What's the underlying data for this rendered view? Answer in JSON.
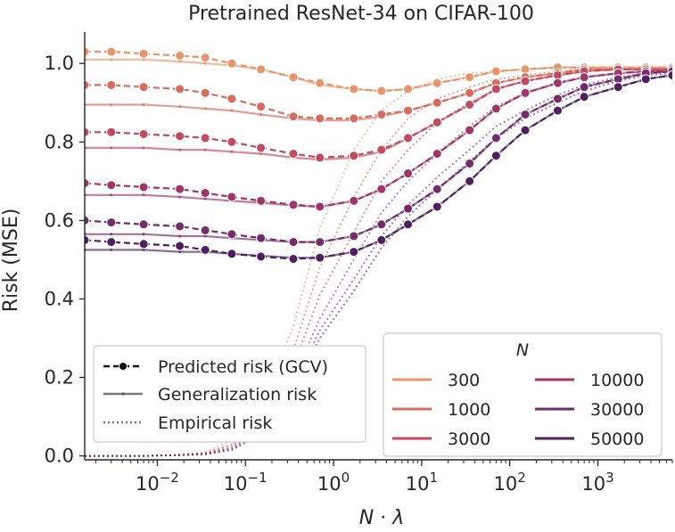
{
  "chart_data": {
    "type": "line",
    "title": "Pretrained ResNet-34 on CIFAR-100",
    "xlabel_prefix": "N",
    "xlabel_suffix": "λ",
    "ylabel": "Risk (MSE)",
    "xscale": "log",
    "xlim": [
      0.0015,
      7000
    ],
    "ylim": [
      -0.01,
      1.08
    ],
    "xticks": [
      {
        "value": 0.01,
        "exp": "−2"
      },
      {
        "value": 0.1,
        "exp": "−1"
      },
      {
        "value": 1,
        "exp": "0"
      },
      {
        "value": 10,
        "exp": "1"
      },
      {
        "value": 100,
        "exp": "2"
      },
      {
        "value": 1000,
        "exp": "3"
      }
    ],
    "yticks": [
      "0.0",
      "0.2",
      "0.4",
      "0.6",
      "0.8",
      "1.0"
    ],
    "ytick_values": [
      0,
      0.2,
      0.4,
      0.6,
      0.8,
      1.0
    ],
    "grid": false,
    "x": [
      0.0015,
      0.003,
      0.007,
      0.018,
      0.035,
      0.07,
      0.15,
      0.35,
      0.7,
      1.7,
      3.5,
      7,
      15,
      35,
      70,
      150,
      350,
      700,
      1700,
      3500,
      7000
    ],
    "series": [
      {
        "name": "300",
        "color": "#e8956b",
        "predicted": [
          1.03,
          1.03,
          1.025,
          1.02,
          1.015,
          1.0,
          0.985,
          0.965,
          0.95,
          0.935,
          0.93,
          0.935,
          0.95,
          0.965,
          0.98,
          0.985,
          0.99,
          0.99,
          0.99,
          0.99,
          0.99
        ],
        "generalization": [
          1.01,
          1.01,
          1.01,
          1.005,
          1.0,
          0.995,
          0.985,
          0.965,
          0.945,
          0.935,
          0.93,
          0.935,
          0.95,
          0.965,
          0.98,
          0.985,
          0.99,
          0.99,
          0.99,
          0.99,
          0.99
        ],
        "empirical": [
          0.0,
          0.0,
          0.0,
          0.003,
          0.01,
          0.04,
          0.13,
          0.33,
          0.58,
          0.78,
          0.88,
          0.93,
          0.96,
          0.975,
          0.98,
          0.985,
          0.99,
          0.99,
          0.99,
          0.99,
          0.99
        ]
      },
      {
        "name": "1000",
        "color": "#d96b5c",
        "predicted": [
          0.945,
          0.945,
          0.94,
          0.935,
          0.925,
          0.91,
          0.89,
          0.865,
          0.86,
          0.86,
          0.87,
          0.88,
          0.9,
          0.925,
          0.95,
          0.965,
          0.975,
          0.985,
          0.985,
          0.985,
          0.985
        ],
        "generalization": [
          0.895,
          0.895,
          0.895,
          0.89,
          0.885,
          0.88,
          0.87,
          0.86,
          0.855,
          0.855,
          0.865,
          0.88,
          0.9,
          0.925,
          0.95,
          0.965,
          0.975,
          0.985,
          0.985,
          0.985,
          0.985
        ],
        "empirical": [
          0.0,
          0.0,
          0.0,
          0.002,
          0.007,
          0.03,
          0.1,
          0.27,
          0.48,
          0.66,
          0.78,
          0.86,
          0.91,
          0.94,
          0.96,
          0.97,
          0.98,
          0.985,
          0.985,
          0.985,
          0.985
        ]
      },
      {
        "name": "3000",
        "color": "#c24a5e",
        "predicted": [
          0.825,
          0.825,
          0.82,
          0.815,
          0.81,
          0.8,
          0.785,
          0.77,
          0.76,
          0.765,
          0.78,
          0.81,
          0.85,
          0.895,
          0.935,
          0.955,
          0.97,
          0.98,
          0.985,
          0.985,
          0.985
        ],
        "generalization": [
          0.785,
          0.785,
          0.785,
          0.78,
          0.78,
          0.775,
          0.77,
          0.76,
          0.755,
          0.76,
          0.775,
          0.81,
          0.85,
          0.895,
          0.935,
          0.955,
          0.97,
          0.98,
          0.985,
          0.985,
          0.985
        ],
        "empirical": [
          0.0,
          0.0,
          0.0,
          0.002,
          0.006,
          0.025,
          0.085,
          0.23,
          0.41,
          0.57,
          0.7,
          0.78,
          0.85,
          0.9,
          0.935,
          0.955,
          0.97,
          0.98,
          0.985,
          0.985,
          0.985
        ]
      },
      {
        "name": "10000",
        "color": "#a0356a",
        "predicted": [
          0.695,
          0.69,
          0.685,
          0.68,
          0.67,
          0.66,
          0.65,
          0.64,
          0.635,
          0.65,
          0.68,
          0.72,
          0.77,
          0.83,
          0.885,
          0.925,
          0.95,
          0.965,
          0.975,
          0.98,
          0.98
        ],
        "generalization": [
          0.665,
          0.665,
          0.665,
          0.66,
          0.655,
          0.65,
          0.645,
          0.638,
          0.635,
          0.65,
          0.68,
          0.72,
          0.77,
          0.83,
          0.885,
          0.925,
          0.95,
          0.965,
          0.975,
          0.98,
          0.98
        ],
        "empirical": [
          0.0,
          0.0,
          0.0,
          0.002,
          0.005,
          0.02,
          0.07,
          0.2,
          0.35,
          0.5,
          0.62,
          0.7,
          0.77,
          0.84,
          0.89,
          0.925,
          0.95,
          0.965,
          0.975,
          0.98,
          0.98
        ]
      },
      {
        "name": "30000",
        "color": "#732c6b",
        "predicted": [
          0.6,
          0.595,
          0.59,
          0.585,
          0.575,
          0.565,
          0.555,
          0.545,
          0.545,
          0.56,
          0.59,
          0.63,
          0.68,
          0.745,
          0.81,
          0.87,
          0.91,
          0.94,
          0.96,
          0.975,
          0.98
        ],
        "generalization": [
          0.565,
          0.565,
          0.565,
          0.56,
          0.56,
          0.555,
          0.55,
          0.545,
          0.545,
          0.56,
          0.59,
          0.63,
          0.68,
          0.745,
          0.81,
          0.87,
          0.91,
          0.94,
          0.96,
          0.975,
          0.98
        ],
        "empirical": [
          0.0,
          0.0,
          0.0,
          0.002,
          0.005,
          0.018,
          0.06,
          0.18,
          0.32,
          0.45,
          0.56,
          0.64,
          0.71,
          0.78,
          0.84,
          0.88,
          0.92,
          0.945,
          0.965,
          0.975,
          0.98
        ]
      },
      {
        "name": "50000",
        "color": "#4e1f5f",
        "predicted": [
          0.55,
          0.545,
          0.54,
          0.535,
          0.525,
          0.515,
          0.508,
          0.502,
          0.505,
          0.52,
          0.55,
          0.59,
          0.635,
          0.7,
          0.765,
          0.83,
          0.88,
          0.915,
          0.94,
          0.96,
          0.97
        ],
        "generalization": [
          0.525,
          0.525,
          0.525,
          0.52,
          0.52,
          0.515,
          0.51,
          0.505,
          0.505,
          0.52,
          0.55,
          0.59,
          0.635,
          0.7,
          0.765,
          0.83,
          0.88,
          0.915,
          0.94,
          0.96,
          0.97
        ],
        "empirical": [
          0.0,
          0.0,
          0.0,
          0.002,
          0.004,
          0.015,
          0.055,
          0.165,
          0.3,
          0.42,
          0.53,
          0.61,
          0.68,
          0.75,
          0.81,
          0.86,
          0.9,
          0.93,
          0.955,
          0.97,
          0.975
        ]
      }
    ],
    "legend_styles": {
      "placement": "lower-left",
      "items": [
        "Predicted risk (GCV)",
        "Generalization risk",
        "Empirical risk"
      ]
    },
    "legend_n": {
      "placement": "lower-right",
      "title": "N",
      "entries": [
        "300",
        "1000",
        "3000",
        "10000",
        "30000",
        "50000"
      ]
    }
  }
}
